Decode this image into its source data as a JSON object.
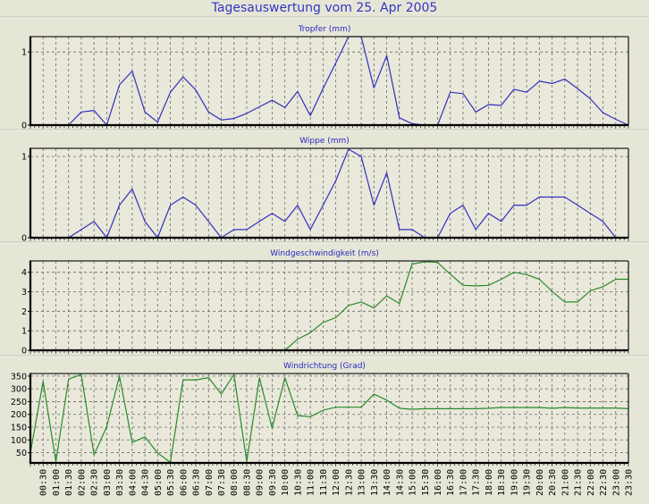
{
  "title": "Tagesauswertung vom 25. Apr 2005",
  "colors": {
    "blue_series": "#3030c0",
    "green_series": "#2a8a2a",
    "frame": "#000000",
    "grid": "#707070",
    "background": "#e6e6d7"
  },
  "times": [
    "00:00",
    "00:30",
    "01:00",
    "01:30",
    "02:00",
    "02:30",
    "03:00",
    "03:30",
    "04:00",
    "04:30",
    "05:00",
    "05:30",
    "06:00",
    "06:30",
    "07:00",
    "07:30",
    "08:00",
    "08:30",
    "09:00",
    "09:30",
    "10:00",
    "10:30",
    "11:00",
    "11:30",
    "12:00",
    "12:30",
    "13:00",
    "13:30",
    "14:00",
    "14:30",
    "15:00",
    "15:30",
    "16:00",
    "16:30",
    "17:00",
    "17:30",
    "18:00",
    "18:30",
    "19:00",
    "19:30",
    "20:00",
    "20:30",
    "21:00",
    "21:30",
    "22:00",
    "22:30",
    "23:00",
    "23:30"
  ],
  "chart_data": [
    {
      "type": "line",
      "title": "Tropfer (mm)",
      "ylim": [
        0,
        1.21
      ],
      "yticks": [
        0,
        1
      ],
      "ytick_labels": [
        "0",
        "1"
      ],
      "hgrid": [
        1
      ],
      "color": "#3030c0",
      "values": [
        0,
        0,
        0,
        0,
        0.18,
        0.2,
        0,
        0.55,
        0.74,
        0.18,
        0.04,
        0.45,
        0.66,
        0.48,
        0.18,
        0.07,
        0.09,
        0.16,
        0.25,
        0.34,
        0.24,
        0.46,
        0.13,
        0.5,
        0.85,
        1.25,
        1.25,
        0.51,
        0.95,
        0.1,
        0.02,
        0,
        0,
        0.45,
        0.43,
        0.18,
        0.28,
        0.27,
        0.49,
        0.45,
        0.6,
        0.57,
        0.63,
        0.5,
        0.36,
        0.17,
        0.08,
        0
      ]
    },
    {
      "type": "line",
      "title": "Wippe (mm)",
      "ylim": [
        0,
        1.1
      ],
      "yticks": [
        0,
        1
      ],
      "ytick_labels": [
        "0",
        "1"
      ],
      "hgrid": [
        1
      ],
      "color": "#3030c0",
      "values": [
        0,
        0,
        0,
        0,
        0.1,
        0.2,
        0,
        0.4,
        0.6,
        0.2,
        0,
        0.4,
        0.5,
        0.4,
        0.2,
        0,
        0.1,
        0.1,
        0.2,
        0.3,
        0.2,
        0.4,
        0.1,
        0.4,
        0.7,
        1.09,
        1.0,
        0.4,
        0.8,
        0.1,
        0.1,
        0,
        0,
        0.3,
        0.4,
        0.1,
        0.3,
        0.2,
        0.4,
        0.4,
        0.5,
        0.5,
        0.5,
        0.4,
        0.3,
        0.2,
        0,
        0
      ]
    },
    {
      "type": "line",
      "title": "Windgeschwindigkeit (m/s)",
      "ylim": [
        0,
        4.58
      ],
      "yticks": [
        0,
        1,
        2,
        3,
        4
      ],
      "ytick_labels": [
        "0",
        "1",
        "2",
        "3",
        "4"
      ],
      "hgrid": [
        1,
        2,
        3,
        4
      ],
      "color": "#2a8a2a",
      "values": [
        0,
        0,
        0,
        0,
        0,
        0,
        0,
        0,
        0,
        0,
        0,
        0,
        0,
        0,
        0,
        0,
        0,
        0,
        0,
        0,
        0,
        0.57,
        0.9,
        1.43,
        1.67,
        2.3,
        2.48,
        2.17,
        2.79,
        2.4,
        4.42,
        4.54,
        4.5,
        3.9,
        3.33,
        3.3,
        3.33,
        3.64,
        4.0,
        3.88,
        3.64,
        3.02,
        2.48,
        2.48,
        3.05,
        3.26,
        3.64,
        3.64
      ]
    },
    {
      "type": "line",
      "title": "Windrichtung (Grad)",
      "ylim": [
        10,
        360
      ],
      "yticks": [
        50,
        100,
        150,
        200,
        250,
        300,
        350
      ],
      "ytick_labels": [
        "50",
        "100",
        "150",
        "200",
        "250",
        "300",
        "350"
      ],
      "hgrid": [
        50,
        100,
        150,
        200,
        250,
        300,
        350
      ],
      "color": "#2a8a2a",
      "values": [
        50,
        329,
        15,
        338,
        356,
        41,
        152,
        350,
        90,
        112,
        49,
        12,
        335,
        335,
        344,
        280,
        356,
        15,
        344,
        146,
        344,
        195,
        191,
        216,
        228,
        228,
        228,
        279,
        256,
        224,
        220,
        222,
        222,
        222,
        222,
        222,
        224,
        227,
        227,
        227,
        227,
        224,
        227,
        225,
        225,
        225,
        225,
        222
      ]
    }
  ]
}
